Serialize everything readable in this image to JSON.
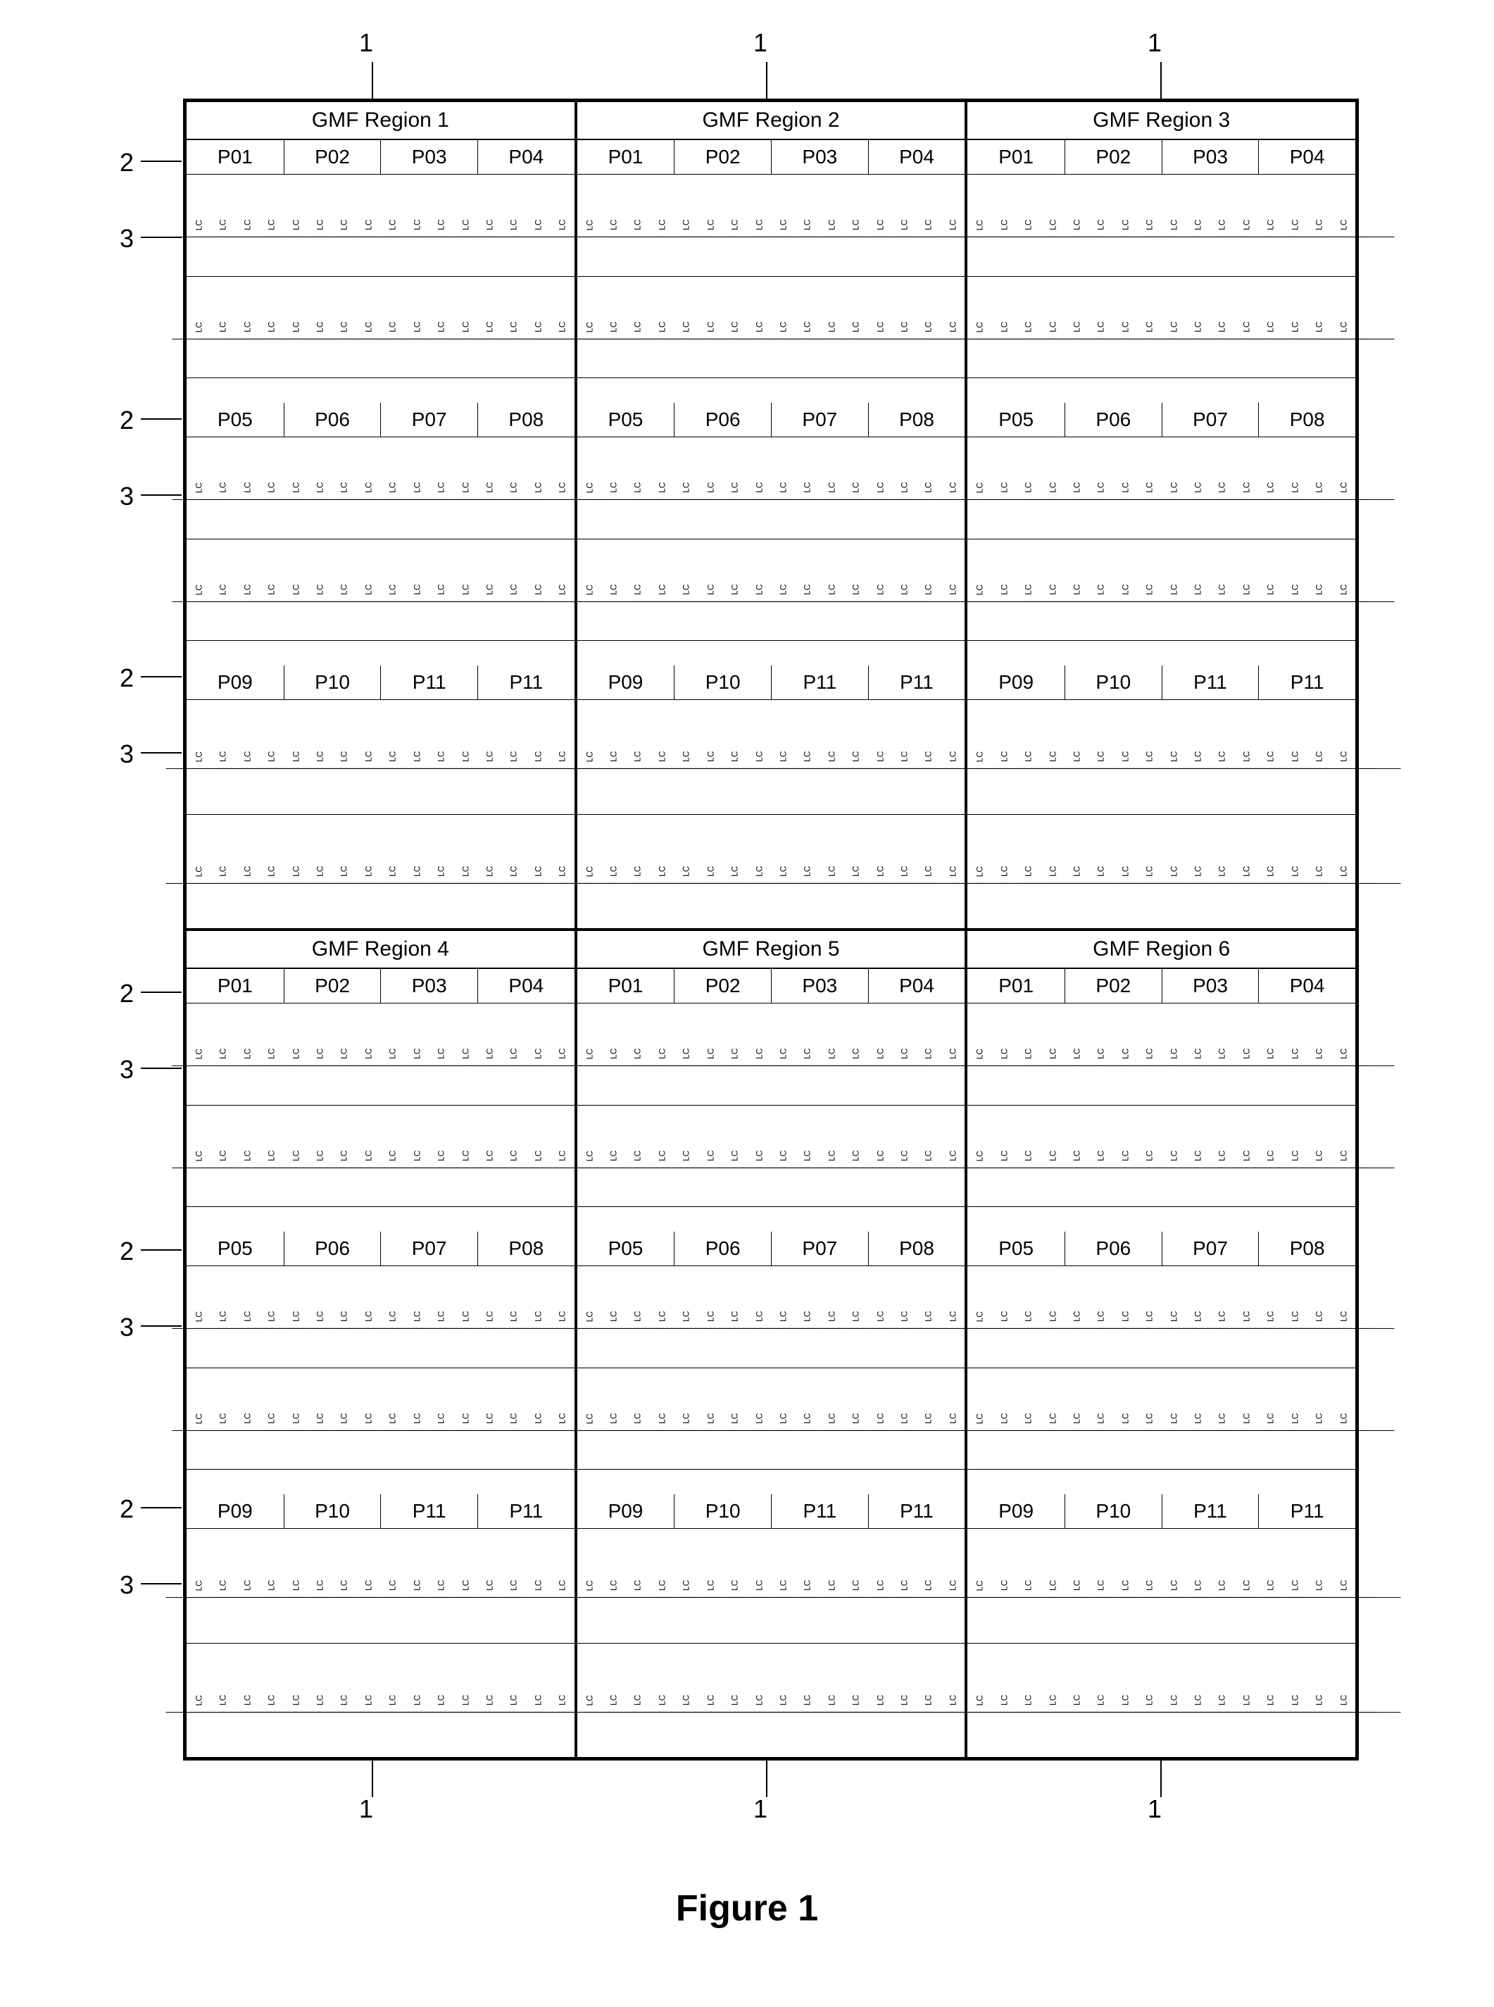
{
  "figure_label": "Figure 1",
  "lc_text": "LC",
  "regions": [
    "GMF Region 1",
    "GMF Region 2",
    "GMF Region 3",
    "GMF Region 4",
    "GMF Region 5",
    "GMF Region 6"
  ],
  "p_rows": [
    [
      "P01",
      "P02",
      "P03",
      "P04"
    ],
    [
      "P05",
      "P06",
      "P07",
      "P08"
    ],
    [
      "P09",
      "P10",
      "P11",
      "P11"
    ]
  ],
  "lc_rows_per_block": 2,
  "lc_cols_per_p": 4,
  "p_per_row": 4,
  "callouts": {
    "top1": "1",
    "top2": "1",
    "top3": "1",
    "bot1": "1",
    "bot2": "1",
    "bot3": "1",
    "left_2": "2",
    "left_3": "3"
  },
  "styling": {
    "bg": "#ffffff",
    "border": "#000000",
    "font_family": "Arial, Helvetica, sans-serif",
    "region_header_fontsize": 30,
    "p_label_fontsize": 28,
    "lc_fontsize": 12,
    "figure_fontsize": 52,
    "callout_fontsize": 36,
    "outer_border_width": 3,
    "inner_border_width": 1
  }
}
